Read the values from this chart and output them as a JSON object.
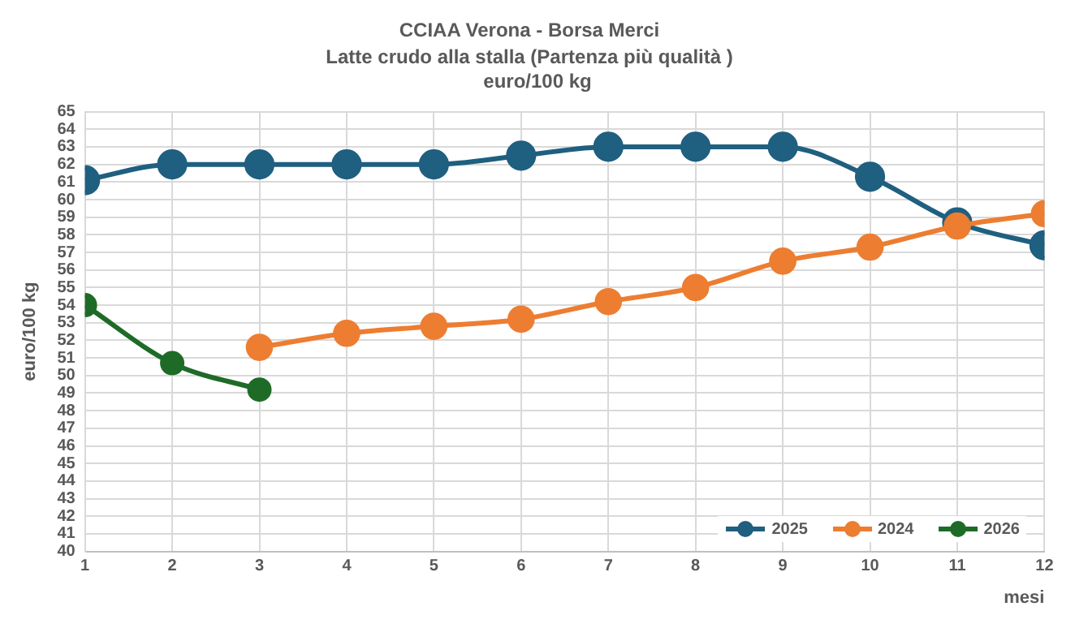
{
  "chart_data": {
    "type": "line",
    "title": "CCIAA Verona - Borsa Merci",
    "subtitle": "Latte crudo alla stalla (Partenza più qualità )",
    "annotations": [
      "euro/100 kg"
    ],
    "xlabel": "mesi",
    "ylabel": "euro/100 kg",
    "x": [
      1,
      2,
      3,
      4,
      5,
      6,
      7,
      8,
      9,
      10,
      11,
      12
    ],
    "series": [
      {
        "name": "2025",
        "color": "#1f5f80",
        "values": [
          61.1,
          62.0,
          62.0,
          62.0,
          62.0,
          62.5,
          63.0,
          63.0,
          63.0,
          61.3,
          58.7,
          57.4
        ]
      },
      {
        "name": "2024",
        "color": "#ed7d31",
        "values": [
          null,
          null,
          51.6,
          52.4,
          52.8,
          53.2,
          54.2,
          55.0,
          56.5,
          57.3,
          58.5,
          59.2
        ]
      },
      {
        "name": "2026",
        "color": "#1e6b28",
        "values": [
          54.0,
          50.7,
          49.2,
          null,
          null,
          null,
          null,
          null,
          null,
          null,
          null,
          null
        ]
      }
    ],
    "xlim": [
      1,
      12
    ],
    "xticks": [
      1,
      2,
      3,
      4,
      5,
      6,
      7,
      8,
      9,
      10,
      11,
      12
    ],
    "ylim": [
      40,
      65
    ],
    "yticks": [
      40,
      41,
      42,
      43,
      44,
      45,
      46,
      47,
      48,
      49,
      50,
      51,
      52,
      53,
      54,
      55,
      56,
      57,
      58,
      59,
      60,
      61,
      62,
      63,
      64,
      65
    ],
    "grid": true,
    "legend": "bottom right",
    "marker": "circle",
    "line_style": "solid"
  }
}
